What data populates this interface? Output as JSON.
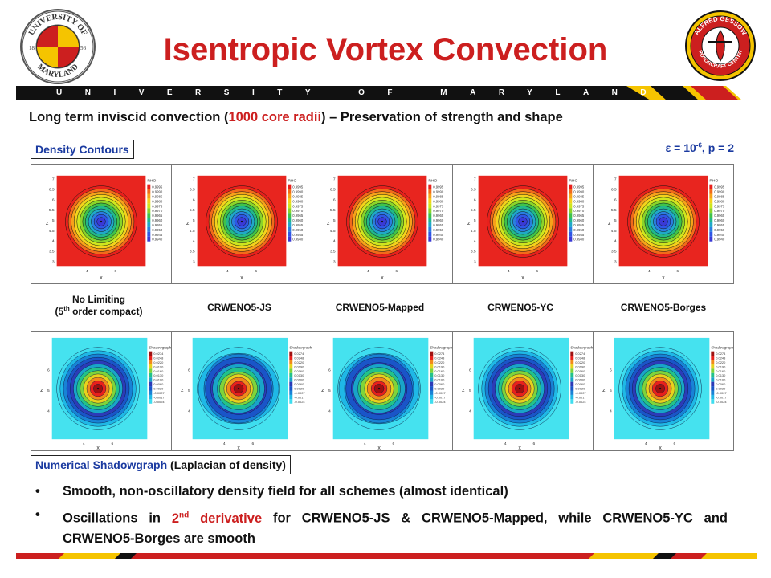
{
  "header": {
    "title": "Isentropic Vortex Convection",
    "banner_text": "UNIVERSITY OF MARYLAND"
  },
  "logos": {
    "left": {
      "top_text": "UNIVERSITY OF",
      "bottom_text": "MARYLAND",
      "year_left": "18",
      "year_right": "56"
    },
    "right": {
      "top_text": "ALFRED GESSOW",
      "bottom_text": "ROTORCRAFT CENTER"
    }
  },
  "subtitle": {
    "pre": "Long term inviscid convection (",
    "highlight": "1000 core radii",
    "post": ") – Preservation of strength and shape"
  },
  "density_label": "Density Contours",
  "params": {
    "eps_prefix": "ε = 10",
    "eps_exp": "-6",
    "eps_suffix": ", p = 2"
  },
  "density_plots": {
    "legend_title": "RHO",
    "axis_x": "x",
    "axis_z": "z",
    "y_ticks": [
      "7",
      "6.5",
      "6",
      "5.5",
      "5",
      "4.5",
      "4",
      "3.5",
      "3"
    ],
    "x_ticks": [
      "4",
      "6"
    ],
    "legend_values": [
      "0.9995",
      "0.9990",
      "0.9985",
      "0.9980",
      "0.9975",
      "0.9970",
      "0.9965",
      "0.9960",
      "0.9955",
      "0.9950",
      "0.9945",
      "0.9940"
    ]
  },
  "schemes": [
    {
      "line1": "No Limiting",
      "line2_pre": "(5",
      "line2_sup": "th",
      "line2_post": " order compact)"
    },
    {
      "line1": "CRWENO5-JS"
    },
    {
      "line1": "CRWENO5-Mapped"
    },
    {
      "line1": "CRWENO5-YC"
    },
    {
      "line1": "CRWENO5-Borges"
    }
  ],
  "shadow_plots": {
    "legend_title": "Shadowgraph",
    "axis_x": "x",
    "axis_z": "z",
    "y_ticks": [
      "6",
      "5",
      "4"
    ],
    "x_ticks": [
      "4",
      "6"
    ],
    "legend_values": [
      "0.0274",
      "0.0248",
      "0.0220",
      "0.0190",
      "0.0160",
      "0.0130",
      "0.0100",
      "0.0060",
      "0.0020",
      "-0.0007",
      "-0.0017",
      "-0.0024"
    ]
  },
  "shadow_label": {
    "highlight": "Numerical Shadowgraph",
    "rest": " (Laplacian of density)"
  },
  "bullets": [
    {
      "text": "Smooth, non-oscillatory density field for all schemes (almost identical)"
    },
    {
      "pre": "Oscillations in ",
      "hl_pre": "2",
      "hl_sup": "nd",
      "hl_post": " derivative",
      "post": " for CRWENO5-JS & CRWENO5-Mapped, while CRWENO5-YC and CRWENO5-Borges are smooth"
    }
  ],
  "colors": {
    "accent_red": "#cc1f1f",
    "accent_blue": "#1a3aa0",
    "maryland_gold": "#f5c400",
    "banner_black": "#111111"
  }
}
